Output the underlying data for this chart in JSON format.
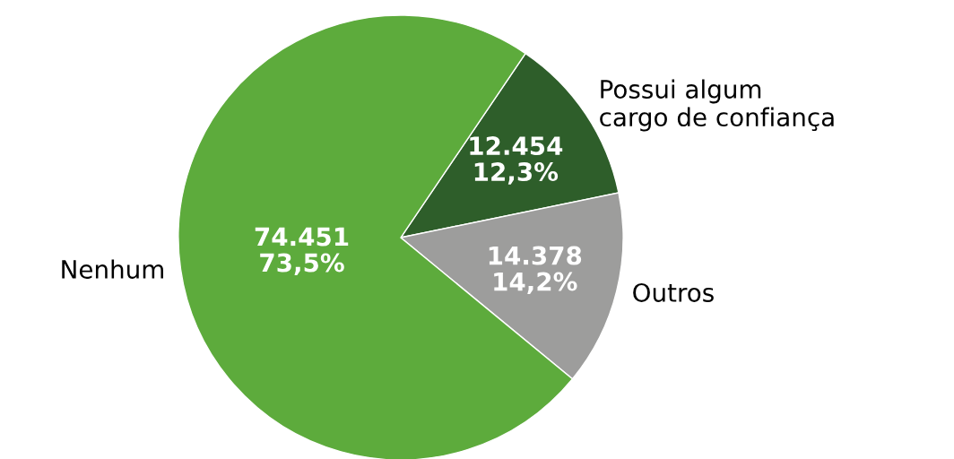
{
  "chart_data": {
    "type": "pie",
    "categories": [
      "Possui algum\ncargo de confiança",
      "Outros",
      "Nenhum"
    ],
    "values": [
      12454,
      14378,
      74451
    ],
    "colors": [
      "#2e5e2a",
      "#9d9d9c",
      "#5dab3c"
    ],
    "value_labels": [
      "12.454\n12,3%",
      "14.378\n14,2%",
      "74.451\n73,5%"
    ],
    "legend": false
  }
}
